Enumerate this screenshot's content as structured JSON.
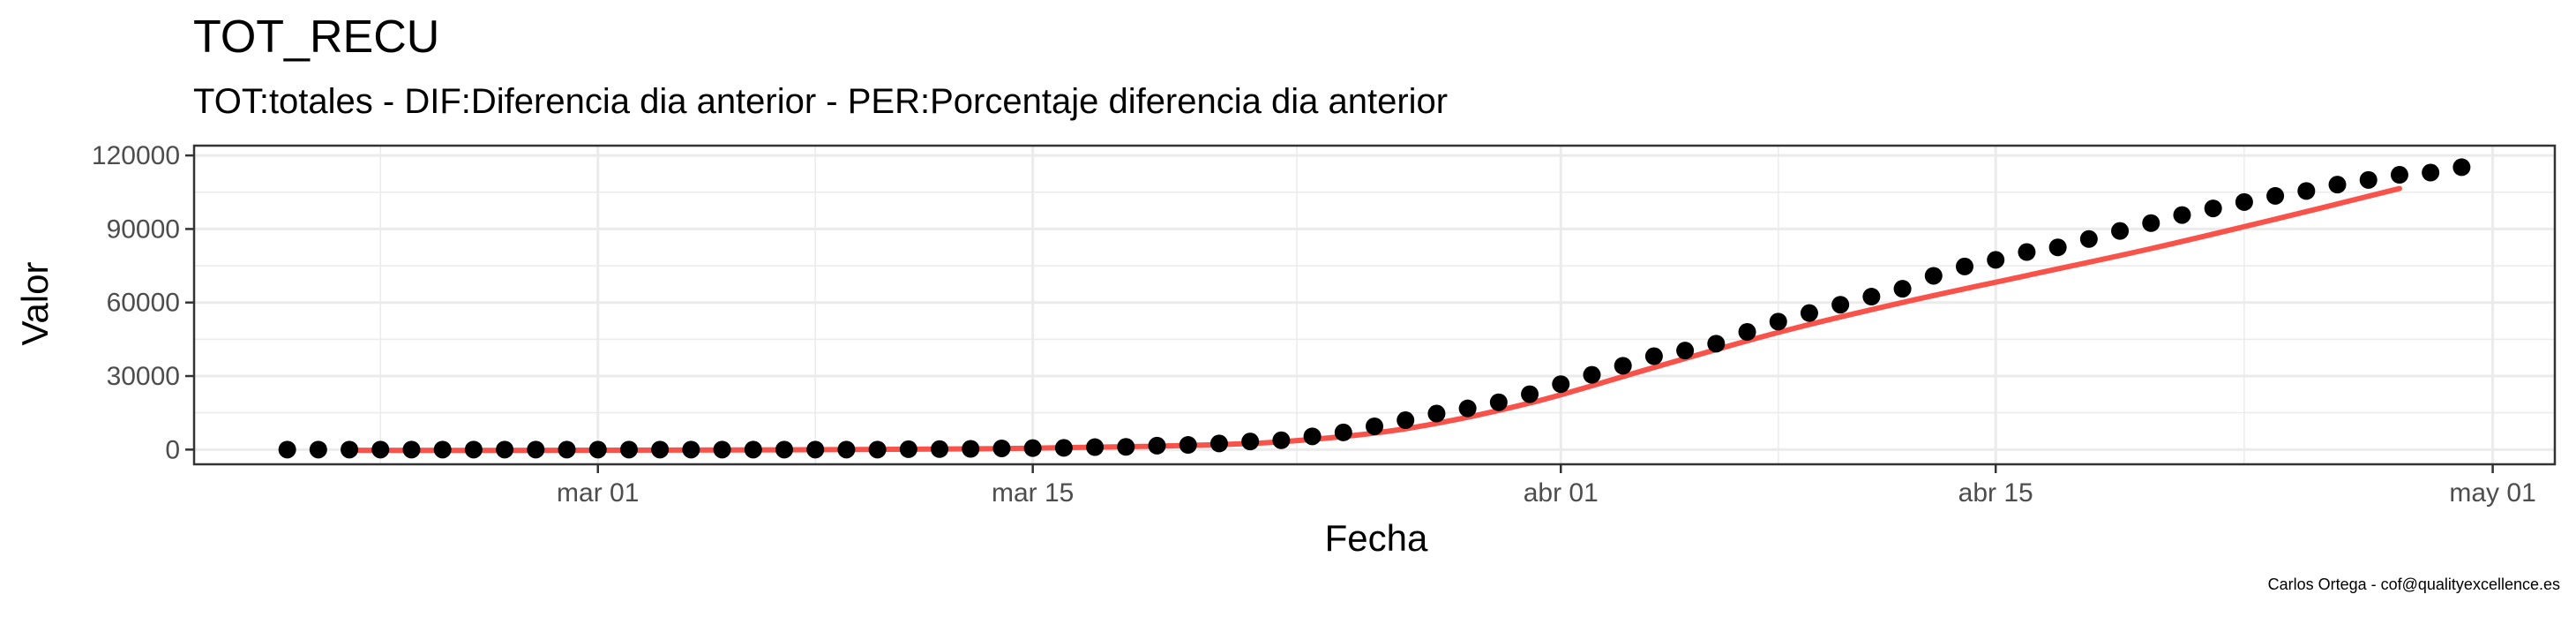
{
  "chart_data": {
    "type": "scatter",
    "title": "TOT_RECU",
    "subtitle": "TOT:totales - DIF:Diferencia dia anterior - PER:Porcentaje diferencia dia anterior",
    "xlabel": "Fecha",
    "ylabel": "Valor",
    "caption": "Carlos Ortega - cof@qualityexcellence.es",
    "xlim": [
      "2020-02-17",
      "2020-05-03"
    ],
    "ylim": [
      -6000,
      124000
    ],
    "x_ticks": [
      {
        "date": "2020-03-01",
        "label": "mar 01"
      },
      {
        "date": "2020-03-15",
        "label": "mar 15"
      },
      {
        "date": "2020-04-01",
        "label": "abr 01"
      },
      {
        "date": "2020-04-15",
        "label": "abr 15"
      },
      {
        "date": "2020-05-01",
        "label": "may 01"
      }
    ],
    "y_ticks": [
      0,
      30000,
      60000,
      90000,
      120000
    ],
    "y_tick_labels": [
      "0",
      "30000",
      "60000",
      "90000",
      "120000"
    ],
    "grid": true,
    "colors": {
      "points": "#000000",
      "smooth": "#f8524a",
      "grid": "#ebebeb",
      "panel_border": "#333333"
    },
    "series": [
      {
        "x": [
          "2020-02-20",
          "2020-02-21",
          "2020-02-22",
          "2020-02-23",
          "2020-02-24",
          "2020-02-25",
          "2020-02-26",
          "2020-02-27",
          "2020-02-28",
          "2020-02-29",
          "2020-03-01",
          "2020-03-02",
          "2020-03-03",
          "2020-03-04",
          "2020-03-05",
          "2020-03-06",
          "2020-03-07",
          "2020-03-08",
          "2020-03-09",
          "2020-03-10",
          "2020-03-11",
          "2020-03-12",
          "2020-03-13",
          "2020-03-14",
          "2020-03-15",
          "2020-03-16",
          "2020-03-17",
          "2020-03-18",
          "2020-03-19",
          "2020-03-20",
          "2020-03-21",
          "2020-03-22",
          "2020-03-23",
          "2020-03-24",
          "2020-03-25",
          "2020-03-26",
          "2020-03-27",
          "2020-03-28",
          "2020-03-29",
          "2020-03-30",
          "2020-03-31",
          "2020-04-01",
          "2020-04-02",
          "2020-04-03",
          "2020-04-04",
          "2020-04-05",
          "2020-04-06",
          "2020-04-07",
          "2020-04-08",
          "2020-04-09",
          "2020-04-10",
          "2020-04-11",
          "2020-04-12",
          "2020-04-13",
          "2020-04-14",
          "2020-04-15",
          "2020-04-16",
          "2020-04-17",
          "2020-04-18",
          "2020-04-19",
          "2020-04-20",
          "2020-04-21",
          "2020-04-22",
          "2020-04-23",
          "2020-04-24",
          "2020-04-25",
          "2020-04-26",
          "2020-04-27",
          "2020-04-28",
          "2020-04-29",
          "2020-04-30"
        ],
        "values": [
          0,
          0,
          0,
          0,
          0,
          0,
          0,
          0,
          0,
          0,
          0,
          0,
          0,
          0,
          0,
          0,
          0,
          0,
          0,
          0,
          150,
          200,
          300,
          500,
          600,
          700,
          1000,
          1100,
          1600,
          1900,
          2500,
          3300,
          3800,
          5400,
          7000,
          9500,
          12000,
          14700,
          16800,
          19300,
          22600,
          26700,
          30500,
          34200,
          38100,
          40400,
          43200,
          48000,
          52200,
          55700,
          59100,
          62400,
          65600,
          70900,
          74700,
          77400,
          80600,
          82500,
          85900,
          89200,
          92400,
          95700,
          98400,
          101000,
          103500,
          105500,
          108100,
          110000,
          112100,
          113000,
          115200
        ]
      }
    ],
    "smooth": {
      "method": "loess",
      "x": [
        "2020-02-22",
        "2020-02-29",
        "2020-03-07",
        "2020-03-14",
        "2020-03-19",
        "2020-03-23",
        "2020-03-27",
        "2020-03-31",
        "2020-04-04",
        "2020-04-08",
        "2020-04-12",
        "2020-04-16",
        "2020-04-20",
        "2020-04-24",
        "2020-04-28"
      ],
      "values": [
        -300,
        -300,
        -100,
        400,
        1400,
        3200,
        8500,
        19000,
        33500,
        47800,
        60000,
        71000,
        82000,
        94000,
        106500
      ]
    }
  }
}
